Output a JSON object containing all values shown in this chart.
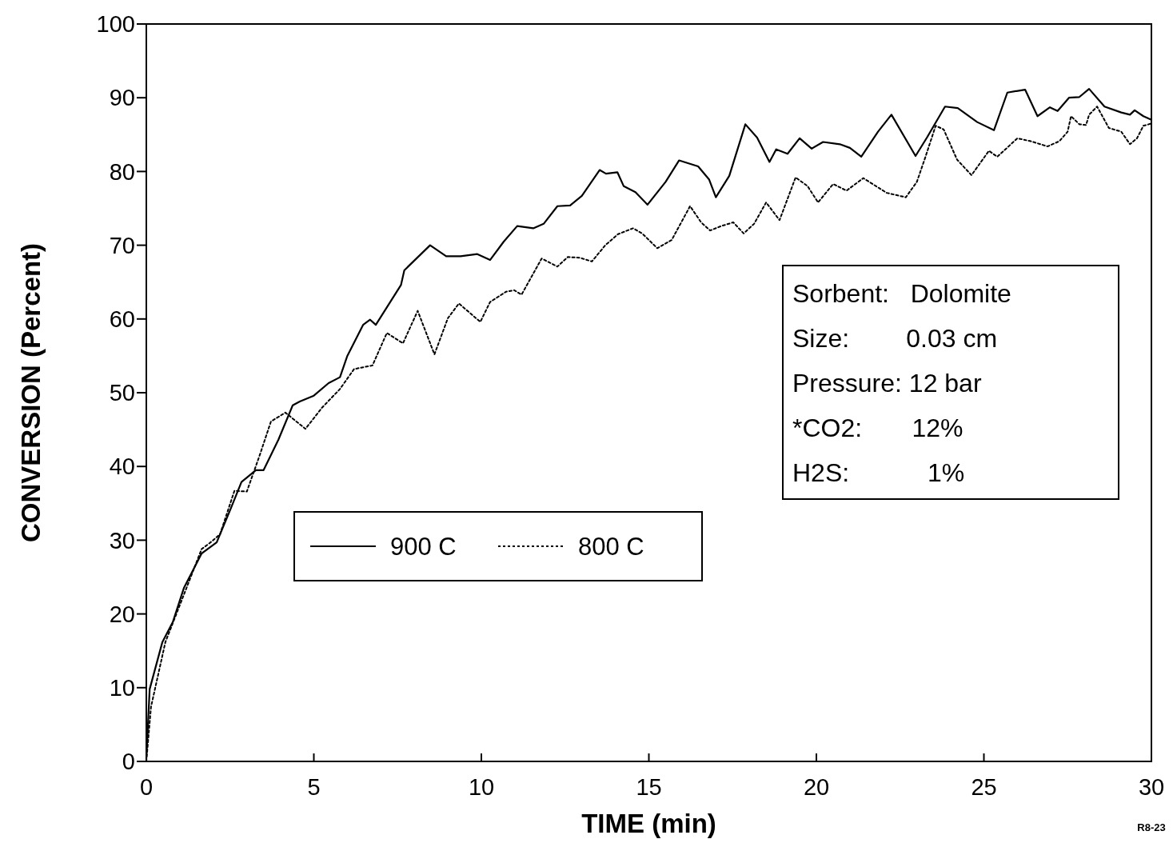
{
  "chart_data": {
    "type": "line",
    "xlabel": "TIME (min)",
    "ylabel": "CONVERSION (Percent)",
    "xlim": [
      0,
      30
    ],
    "ylim": [
      0,
      100
    ],
    "xticks": [
      0,
      5,
      10,
      15,
      20,
      25,
      30
    ],
    "yticks": [
      0,
      10,
      20,
      30,
      40,
      50,
      60,
      70,
      80,
      90,
      100
    ],
    "grid": false,
    "legend": "center left",
    "marker": "none",
    "series": [
      {
        "name": "900 C",
        "color": "#000000",
        "line_style": "solid",
        "x": [
          0,
          0.1,
          0.48,
          0.79,
          1.12,
          1.65,
          2.1,
          2.53,
          2.84,
          3.27,
          3.5,
          3.94,
          4.37,
          4.58,
          5.0,
          5.44,
          5.78,
          6.0,
          6.47,
          6.68,
          6.85,
          7.6,
          7.7,
          8.47,
          8.95,
          9.38,
          9.88,
          10.26,
          10.67,
          11.07,
          11.55,
          11.86,
          12.27,
          12.65,
          13.0,
          13.53,
          13.72,
          14.06,
          14.25,
          14.6,
          14.96,
          15.5,
          15.9,
          16.47,
          16.8,
          17.0,
          17.4,
          17.88,
          18.23,
          18.6,
          18.8,
          19.14,
          19.5,
          19.86,
          20.2,
          20.7,
          21.0,
          21.34,
          21.84,
          22.24,
          22.96,
          23.3,
          23.84,
          24.22,
          24.8,
          25.3,
          25.7,
          26.23,
          26.6,
          26.97,
          27.2,
          27.54,
          27.85,
          28.14,
          28.6,
          29.1,
          29.36,
          29.5,
          29.76,
          30
        ],
        "values": [
          0.4,
          9.8,
          16.2,
          18.9,
          23.5,
          28.2,
          29.7,
          34.4,
          37.9,
          39.5,
          39.5,
          43.6,
          48.3,
          48.8,
          49.6,
          51.3,
          52.1,
          55.0,
          59.2,
          59.9,
          59.2,
          64.6,
          66.6,
          70.0,
          68.5,
          68.5,
          68.8,
          68.0,
          70.5,
          72.6,
          72.3,
          72.9,
          75.3,
          75.4,
          76.7,
          80.2,
          79.7,
          79.9,
          78.0,
          77.2,
          75.5,
          78.6,
          81.5,
          80.7,
          78.9,
          76.5,
          79.4,
          86.4,
          84.6,
          81.3,
          83.0,
          82.4,
          84.5,
          83.1,
          84.0,
          83.7,
          83.2,
          82.0,
          85.4,
          87.7,
          82.1,
          84.6,
          88.8,
          88.6,
          86.7,
          85.6,
          90.7,
          91.1,
          87.5,
          88.7,
          88.2,
          90.0,
          90.1,
          91.2,
          88.8,
          88.0,
          87.7,
          88.3,
          87.5,
          87.0
        ]
      },
      {
        "name": "800 C",
        "color": "#000000",
        "line_style": "dotted",
        "x": [
          0,
          0.14,
          0.57,
          1.12,
          1.65,
          1.89,
          2.2,
          2.63,
          3.0,
          3.39,
          3.72,
          4.15,
          4.75,
          5.25,
          5.78,
          6.2,
          6.75,
          7.18,
          7.66,
          8.1,
          8.6,
          9.0,
          9.33,
          9.97,
          10.26,
          10.74,
          10.98,
          11.2,
          11.8,
          12.27,
          12.58,
          12.94,
          13.3,
          13.7,
          14.08,
          14.53,
          14.8,
          15.25,
          15.68,
          16.23,
          16.56,
          16.83,
          17.16,
          17.52,
          17.83,
          18.14,
          18.5,
          18.9,
          19.38,
          19.74,
          20.05,
          20.5,
          20.9,
          21.4,
          22.1,
          22.67,
          23.0,
          23.25,
          23.56,
          23.8,
          24.2,
          24.63,
          25.15,
          25.4,
          26.0,
          26.4,
          26.9,
          27.25,
          27.5,
          27.6,
          27.85,
          28.05,
          28.14,
          28.38,
          28.73,
          29.1,
          29.36,
          29.57,
          29.76,
          30
        ],
        "values": [
          0,
          7.4,
          16.2,
          22.6,
          28.8,
          29.6,
          30.8,
          36.7,
          36.6,
          41.6,
          46.1,
          47.3,
          45.1,
          48.0,
          50.5,
          53.2,
          53.7,
          58.1,
          56.7,
          61.1,
          55.2,
          60.1,
          62.1,
          59.6,
          62.3,
          63.7,
          63.9,
          63.3,
          68.2,
          67.1,
          68.4,
          68.3,
          67.8,
          70.0,
          71.5,
          72.3,
          71.6,
          69.6,
          70.7,
          75.3,
          73.1,
          72.0,
          72.6,
          73.1,
          71.6,
          72.9,
          75.8,
          73.4,
          79.2,
          78.0,
          75.8,
          78.3,
          77.4,
          79.1,
          77.1,
          76.5,
          78.6,
          81.9,
          86.2,
          85.7,
          81.6,
          79.5,
          82.8,
          82.0,
          84.5,
          84.1,
          83.4,
          84.1,
          85.4,
          87.5,
          86.4,
          86.3,
          87.7,
          88.8,
          85.9,
          85.4,
          83.7,
          84.5,
          86.2,
          86.5
        ]
      }
    ],
    "annotations": [
      "Sorbent:   Dolomite",
      "Size:        0.03 cm",
      "Pressure: 12 bar",
      "*CO2:       12%",
      "H2S:           1%",
      "R8-23"
    ]
  }
}
